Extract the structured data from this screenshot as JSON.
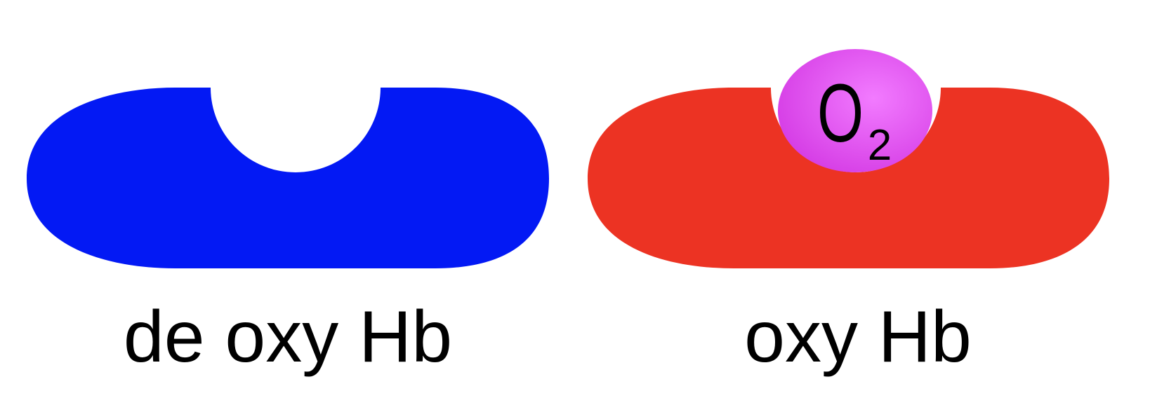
{
  "diagram": {
    "deoxy": {
      "label": "de oxy Hb",
      "color": "#0319f4"
    },
    "oxy": {
      "label": "oxy Hb",
      "color": "#ec3323"
    },
    "oxygen": {
      "symbol": "O",
      "subscript": "2",
      "color": "#d63fe6",
      "highlight": "#f27bff"
    },
    "background": "#ffffff"
  }
}
